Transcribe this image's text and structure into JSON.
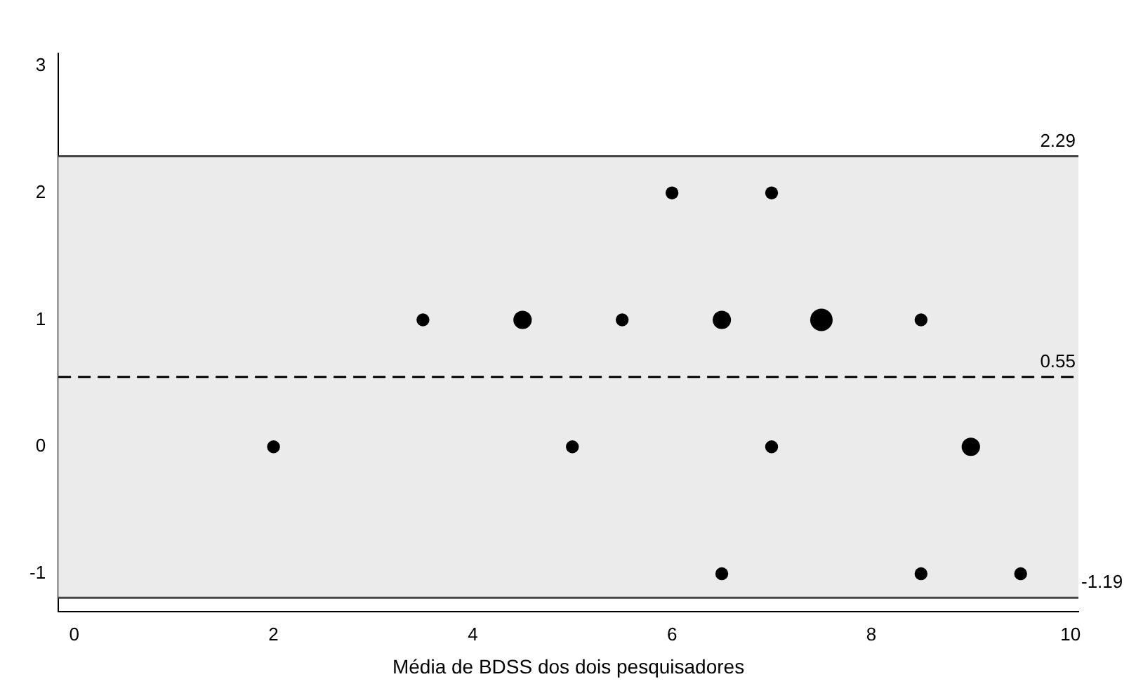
{
  "chart_data": {
    "type": "bubble",
    "xlabel": "Média de BDSS dos dois pesquisadores",
    "x": [
      2,
      3.5,
      4.5,
      5,
      5.5,
      6,
      6.5,
      6.5,
      7,
      7,
      7.5,
      8.5,
      8.5,
      9,
      9.5
    ],
    "values": [
      0,
      1,
      1,
      0,
      1,
      2,
      1,
      -1,
      2,
      0,
      1,
      1,
      -1,
      0,
      -1
    ],
    "sizes": [
      0.33,
      0.33,
      0.67,
      0.33,
      0.33,
      0.33,
      0.67,
      0.33,
      0.33,
      0.33,
      1,
      0.33,
      0.33,
      0.67,
      0.33
    ],
    "color": "#000000",
    "xlim": [
      -0.16,
      10.08
    ],
    "xticks": [
      0,
      2,
      4,
      6,
      8,
      10
    ],
    "ylim": [
      -1.3,
      3.1
    ],
    "yticks": [
      -1,
      0,
      1,
      2,
      3
    ],
    "ref_lines": [
      {
        "axis": "y",
        "value": 2.29,
        "label": "2.29",
        "color": "#444444",
        "line_style": "solid"
      },
      {
        "axis": "y",
        "value": 0.55,
        "label": "0.55",
        "color": "#000000",
        "line_style": "dashed"
      },
      {
        "axis": "y",
        "value": -1.19,
        "label": "-1.19",
        "color": "#444444",
        "line_style": "solid"
      }
    ],
    "bands": [
      {
        "axis": "y",
        "from": -1.19,
        "to": 2.29,
        "color": "#ebebeb"
      }
    ],
    "grid": false,
    "legend": false
  }
}
